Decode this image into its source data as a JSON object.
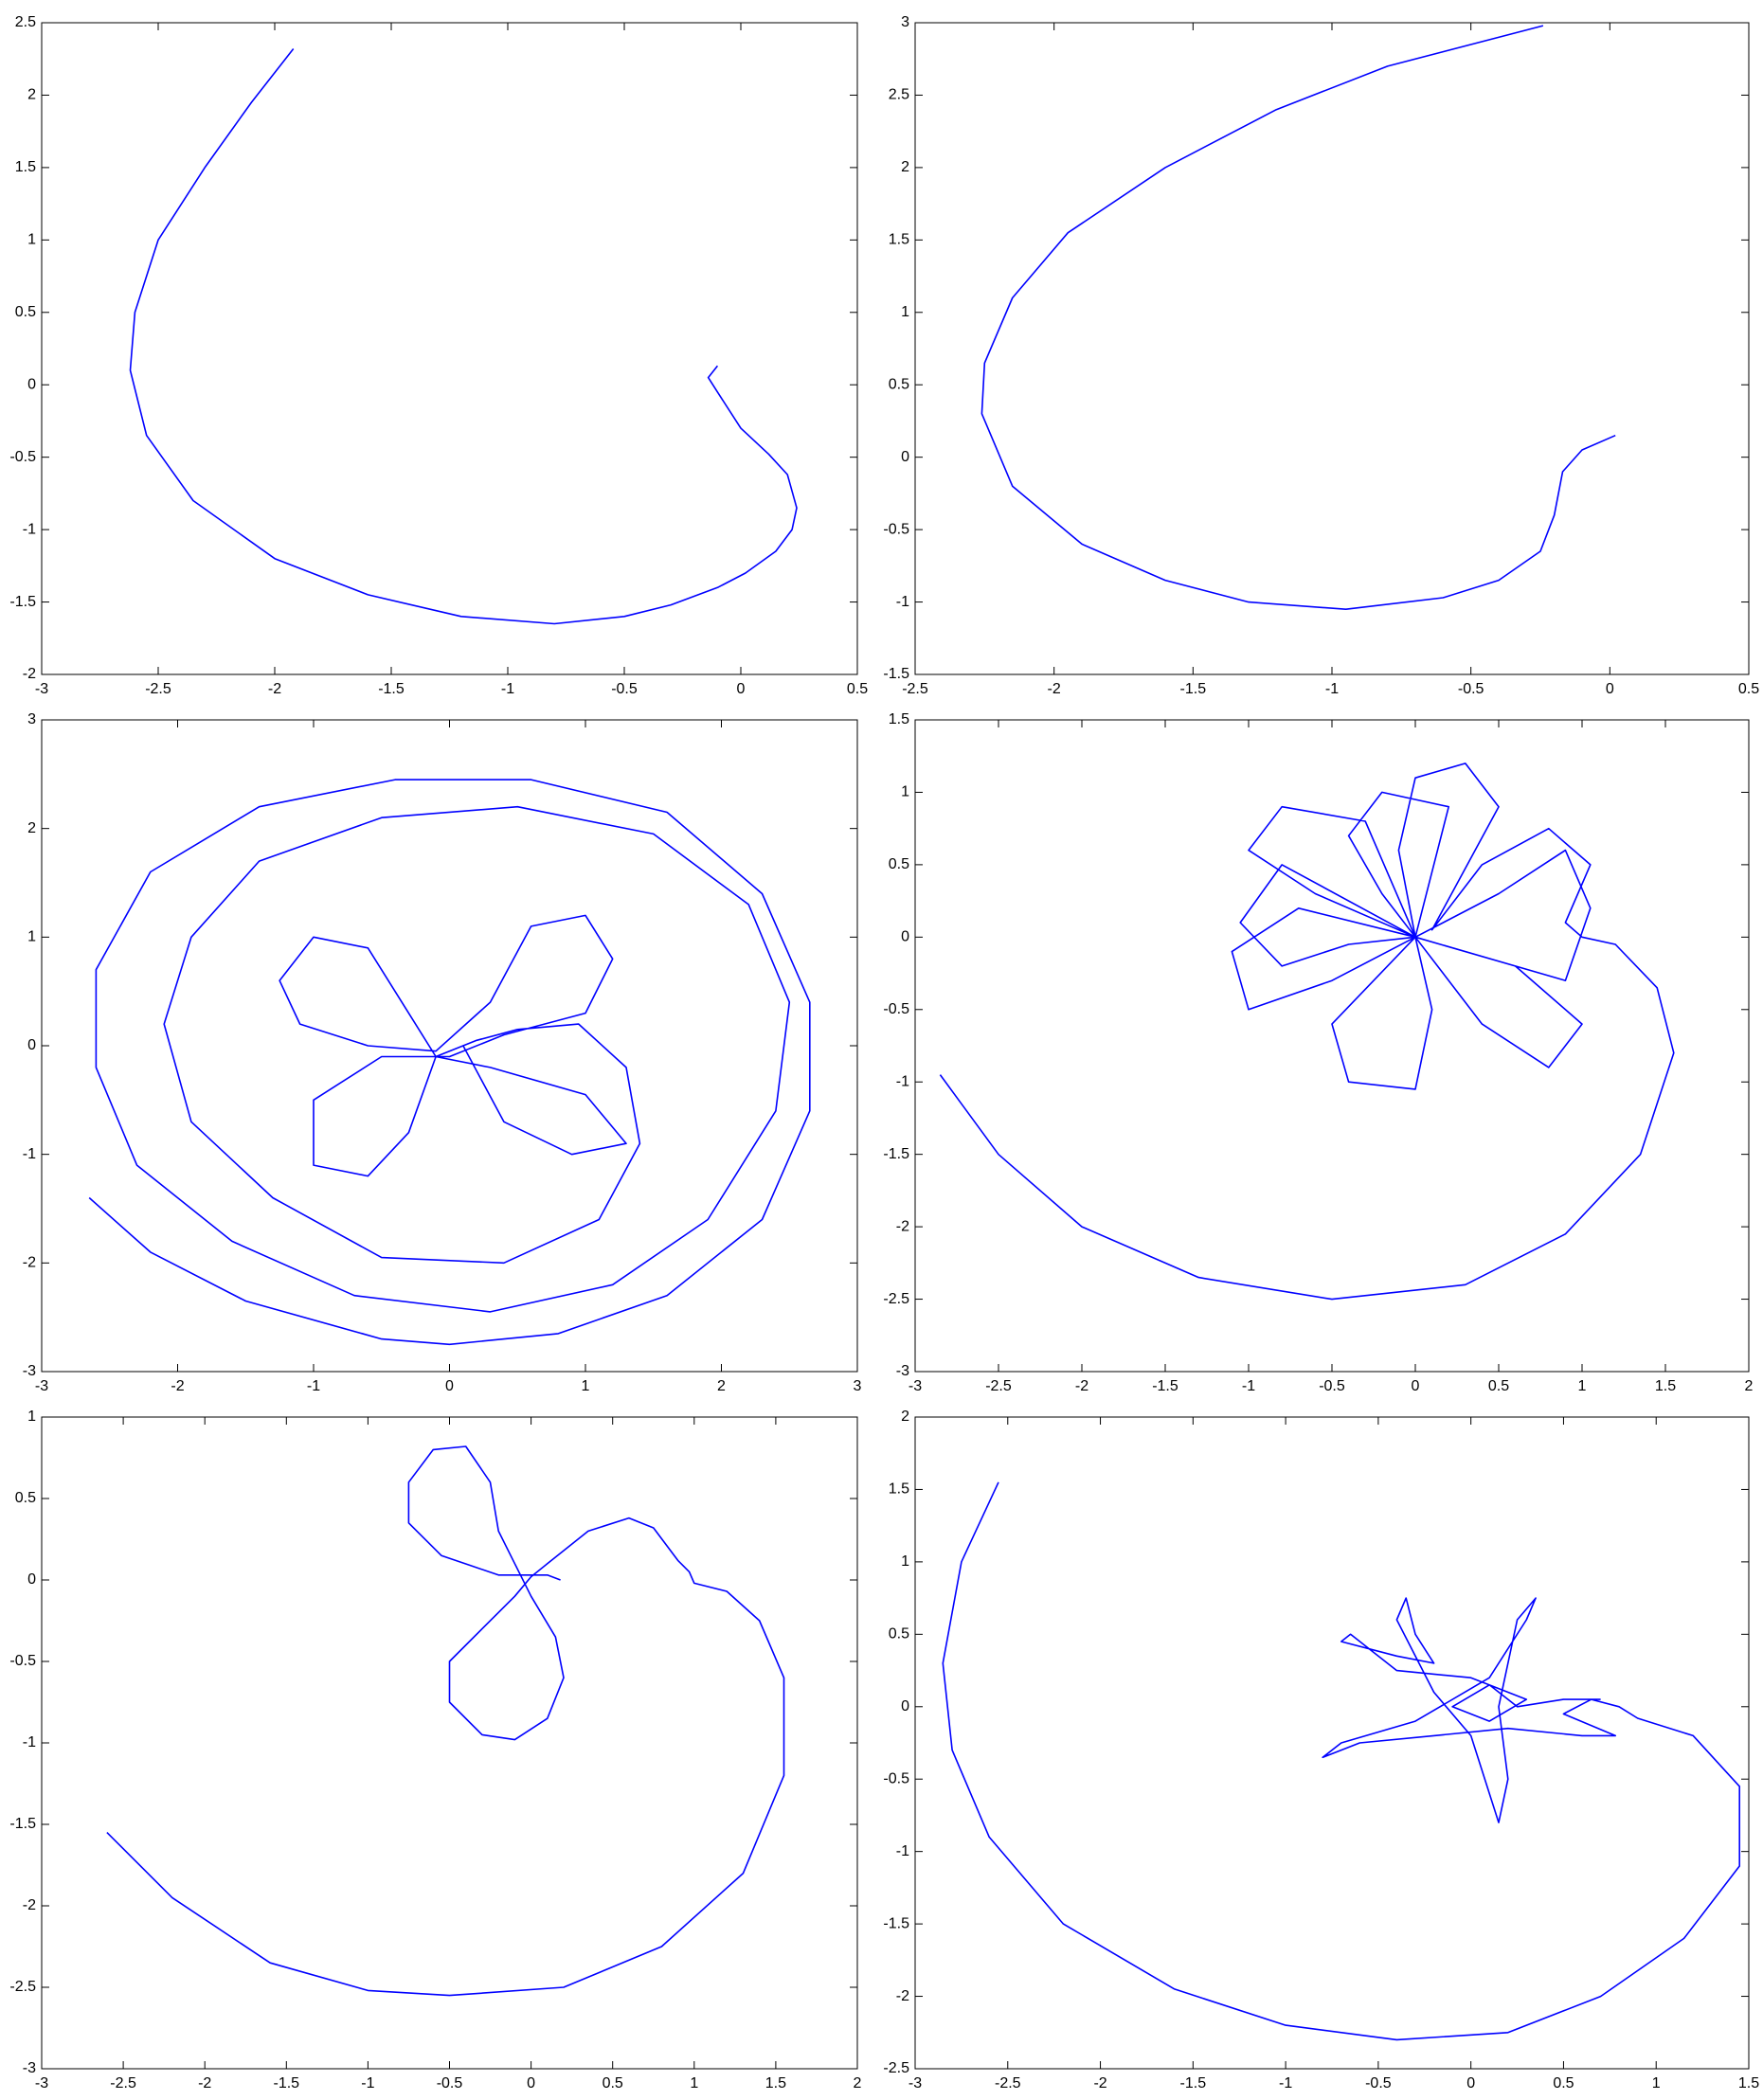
{
  "chart_data": [
    {
      "type": "line",
      "xlim": [
        -3,
        0.5
      ],
      "ylim": [
        -2,
        2.5
      ],
      "xticks": [
        -3,
        -2.5,
        -2,
        -1.5,
        -1,
        -0.5,
        0,
        0.5
      ],
      "yticks": [
        -2,
        -1.5,
        -1,
        -0.5,
        0,
        0.5,
        1,
        1.5,
        2,
        2.5
      ],
      "series": [
        {
          "color": "#0000ff",
          "x": [
            -0.1,
            -0.14,
            -0.1,
            0,
            0.12,
            0.2,
            0.24,
            0.22,
            0.15,
            0.02,
            -0.1,
            -0.3,
            -0.5,
            -0.8,
            -1.2,
            -1.6,
            -2.0,
            -2.35,
            -2.55,
            -2.62,
            -2.6,
            -2.5,
            -2.3,
            -2.1,
            -1.92
          ],
          "values": [
            0.13,
            0.05,
            -0.05,
            -0.3,
            -0.48,
            -0.62,
            -0.85,
            -1.0,
            -1.15,
            -1.3,
            -1.4,
            -1.52,
            -1.6,
            -1.65,
            -1.6,
            -1.45,
            -1.2,
            -0.8,
            -0.35,
            0.1,
            0.5,
            1.0,
            1.5,
            1.95,
            2.32
          ]
        }
      ]
    },
    {
      "type": "line",
      "xlim": [
        -2.5,
        0.5
      ],
      "ylim": [
        -1.5,
        3
      ],
      "xticks": [
        -2.5,
        -2,
        -1.5,
        -1,
        -0.5,
        0,
        0.5
      ],
      "yticks": [
        -1.5,
        -1,
        -0.5,
        0,
        0.5,
        1,
        1.5,
        2,
        2.5,
        3
      ],
      "series": [
        {
          "color": "#0000ff",
          "x": [
            0.02,
            -0.1,
            -0.17,
            -0.2,
            -0.25,
            -0.4,
            -0.6,
            -0.95,
            -1.3,
            -1.6,
            -1.9,
            -2.15,
            -2.26,
            -2.25,
            -2.15,
            -1.95,
            -1.6,
            -1.2,
            -0.8,
            -0.24
          ],
          "values": [
            0.15,
            0.05,
            -0.1,
            -0.4,
            -0.65,
            -0.85,
            -0.97,
            -1.05,
            -1.0,
            -0.85,
            -0.6,
            -0.2,
            0.3,
            0.65,
            1.1,
            1.55,
            2.0,
            2.4,
            2.7,
            2.98
          ]
        }
      ]
    },
    {
      "type": "line",
      "xlim": [
        -3,
        3
      ],
      "ylim": [
        -3,
        3
      ],
      "xticks": [
        -3,
        -2,
        -1,
        0,
        1,
        2,
        3
      ],
      "yticks": [
        -3,
        -2,
        -1,
        0,
        1,
        2,
        3
      ],
      "series": [
        {
          "color": "#0000ff",
          "x": [
            -2.65,
            -2.2,
            -1.5,
            -0.5,
            0,
            0.8,
            1.6,
            2.3,
            2.65,
            2.65,
            2.3,
            1.6,
            0.6,
            -0.4,
            -1.4,
            -2.2,
            -2.6,
            -2.6,
            -2.3,
            -1.6,
            -0.7,
            0.3,
            1.2,
            1.9,
            2.4,
            2.5,
            2.2,
            1.5,
            0.5,
            -0.5,
            -1.4,
            -1.9,
            -2.1,
            -1.9,
            -1.3,
            -0.5,
            0.4,
            1.1,
            1.4,
            1.3,
            0.95,
            0.5,
            0.2,
            -0.1,
            -0.3,
            -0.6,
            -1.0,
            -1.25,
            -1.1,
            -0.6,
            -0.1,
            0.3,
            0.6,
            1.0,
            1.2,
            1.0,
            0.4,
            0,
            -0.5,
            -1.0,
            -1.0,
            -0.6,
            -0.3,
            -0.1,
            0.3,
            1.0,
            1.3,
            0.9,
            0.4,
            0.1
          ],
          "values": [
            -1.4,
            -1.9,
            -2.35,
            -2.7,
            -2.75,
            -2.65,
            -2.3,
            -1.6,
            -0.6,
            0.4,
            1.4,
            2.15,
            2.45,
            2.45,
            2.2,
            1.6,
            0.7,
            -0.2,
            -1.1,
            -1.8,
            -2.3,
            -2.45,
            -2.2,
            -1.6,
            -0.6,
            0.4,
            1.3,
            1.95,
            2.2,
            2.1,
            1.7,
            1.0,
            0.2,
            -0.7,
            -1.4,
            -1.95,
            -2.0,
            -1.6,
            -0.9,
            -0.2,
            0.2,
            0.15,
            0.05,
            -0.1,
            0.3,
            0.9,
            1.0,
            0.6,
            0.2,
            0.0,
            -0.05,
            0.4,
            1.1,
            1.2,
            0.8,
            0.3,
            0.1,
            -0.1,
            -0.1,
            -0.5,
            -1.1,
            -1.2,
            -0.8,
            -0.1,
            -0.2,
            -0.45,
            -0.9,
            -1.0,
            -0.7,
            0
          ]
        }
      ]
    },
    {
      "type": "line",
      "xlim": [
        -3,
        2
      ],
      "ylim": [
        -3,
        1.5
      ],
      "xticks": [
        -3,
        -2.5,
        -2,
        -1.5,
        -1,
        -0.5,
        0,
        0.5,
        1,
        1.5,
        2
      ],
      "yticks": [
        -3,
        -2.5,
        -2,
        -1.5,
        -1,
        -0.5,
        0,
        0.5,
        1,
        1.5
      ],
      "series": [
        {
          "color": "#0000ff",
          "x": [
            -2.85,
            -2.5,
            -2.0,
            -1.3,
            -0.5,
            0.3,
            0.9,
            1.35,
            1.55,
            1.45,
            1.2,
            1.0,
            0.9,
            1.05,
            0.8,
            0.4,
            0.1,
            0.5,
            0.3,
            0,
            -0.1,
            0,
            -0.3,
            -0.8,
            -1.0,
            -0.6,
            0,
            -0.7,
            -1.1,
            -1.0,
            -0.5,
            0,
            -0.5,
            -0.4,
            0,
            0.1,
            0,
            0.4,
            0.8,
            1.0,
            0.6,
            0,
            0.9,
            1.05,
            0.9,
            0.5,
            0,
            0.2,
            -0.2,
            -0.4,
            -0.2,
            0,
            -0.8,
            -1.05,
            -0.8,
            -0.4,
            0
          ],
          "values": [
            -0.95,
            -1.5,
            -2.0,
            -2.35,
            -2.5,
            -2.4,
            -2.05,
            -1.5,
            -0.8,
            -0.35,
            -0.05,
            0.0,
            0.1,
            0.5,
            0.75,
            0.5,
            0.05,
            0.9,
            1.2,
            1.1,
            0.6,
            0,
            0.8,
            0.9,
            0.6,
            0.3,
            0,
            0.2,
            -0.1,
            -0.5,
            -0.3,
            0,
            -0.6,
            -1.0,
            -1.05,
            -0.5,
            0,
            -0.6,
            -0.9,
            -0.6,
            -0.2,
            0,
            -0.3,
            0.2,
            0.6,
            0.3,
            0,
            0.9,
            1.0,
            0.7,
            0.3,
            0,
            0.5,
            0.1,
            -0.2,
            -0.05,
            0
          ]
        }
      ]
    },
    {
      "type": "line",
      "xlim": [
        -3,
        2
      ],
      "ylim": [
        -3,
        1
      ],
      "xticks": [
        -3,
        -2.5,
        -2,
        -1.5,
        -1,
        -0.5,
        0,
        0.5,
        1,
        1.5,
        2
      ],
      "yticks": [
        -3,
        -2.5,
        -2,
        -1.5,
        -1,
        -0.5,
        0,
        0.5,
        1
      ],
      "series": [
        {
          "color": "#0000ff",
          "x": [
            -2.6,
            -2.2,
            -1.6,
            -1.0,
            -0.5,
            0.2,
            0.8,
            1.3,
            1.55,
            1.55,
            1.4,
            1.2,
            1.0,
            0.97,
            0.9,
            0.75,
            0.6,
            0.35,
            0.1,
            0,
            -0.1,
            -0.3,
            -0.5,
            -0.5,
            -0.3,
            -0.1,
            0.1,
            0.2,
            0.15,
            0,
            -0.1,
            -0.2,
            -0.25,
            -0.4,
            -0.6,
            -0.75,
            -0.75,
            -0.55,
            -0.2,
            0.1,
            0.18
          ],
          "values": [
            -1.55,
            -1.95,
            -2.35,
            -2.52,
            -2.55,
            -2.5,
            -2.25,
            -1.8,
            -1.2,
            -0.6,
            -0.25,
            -0.07,
            -0.02,
            0.05,
            0.12,
            0.32,
            0.38,
            0.3,
            0.1,
            0.02,
            -0.1,
            -0.3,
            -0.5,
            -0.75,
            -0.95,
            -0.98,
            -0.85,
            -0.6,
            -0.35,
            -0.1,
            0.1,
            0.3,
            0.6,
            0.82,
            0.8,
            0.6,
            0.35,
            0.15,
            0.03,
            0.03,
            0
          ]
        }
      ]
    },
    {
      "type": "line",
      "xlim": [
        -3,
        1.5
      ],
      "ylim": [
        -2.5,
        2
      ],
      "xticks": [
        -3,
        -2.5,
        -2,
        -1.5,
        -1,
        -0.5,
        0,
        0.5,
        1,
        1.5
      ],
      "yticks": [
        -2.5,
        -2,
        -1.5,
        -1,
        -0.5,
        0,
        0.5,
        1,
        1.5,
        2
      ],
      "series": [
        {
          "color": "#0000ff",
          "x": [
            -2.55,
            -2.75,
            -2.85,
            -2.8,
            -2.6,
            -2.2,
            -1.6,
            -1.0,
            -0.4,
            0.2,
            0.7,
            1.15,
            1.45,
            1.45,
            1.2,
            0.9,
            0.8,
            0.65,
            0.5,
            0.78,
            0.6,
            0.2,
            -0.2,
            -0.6,
            -0.8,
            -0.7,
            -0.3,
            0.1,
            0.3,
            0.35,
            0.25,
            0.15,
            0.2,
            0.15,
            0.1,
            0,
            -0.2,
            -0.4,
            -0.35,
            -0.3,
            -0.2,
            -0.4,
            -0.7,
            -0.65,
            -0.4,
            0,
            0.3,
            0.1,
            -0.1,
            0.1,
            0.25,
            0.5,
            0.7
          ],
          "values": [
            1.55,
            1.0,
            0.3,
            -0.3,
            -0.9,
            -1.5,
            -1.95,
            -2.2,
            -2.3,
            -2.25,
            -2.0,
            -1.6,
            -1.1,
            -0.55,
            -0.2,
            -0.08,
            0,
            0.05,
            -0.05,
            -0.2,
            -0.2,
            -0.15,
            -0.2,
            -0.25,
            -0.35,
            -0.25,
            -0.1,
            0.2,
            0.6,
            0.75,
            0.6,
            0,
            -0.5,
            -0.8,
            -0.6,
            -0.2,
            0.1,
            0.6,
            0.75,
            0.5,
            0.3,
            0.35,
            0.45,
            0.5,
            0.25,
            0.2,
            0.05,
            -0.1,
            0,
            0.15,
            0,
            0.05,
            0.05
          ]
        }
      ]
    }
  ]
}
